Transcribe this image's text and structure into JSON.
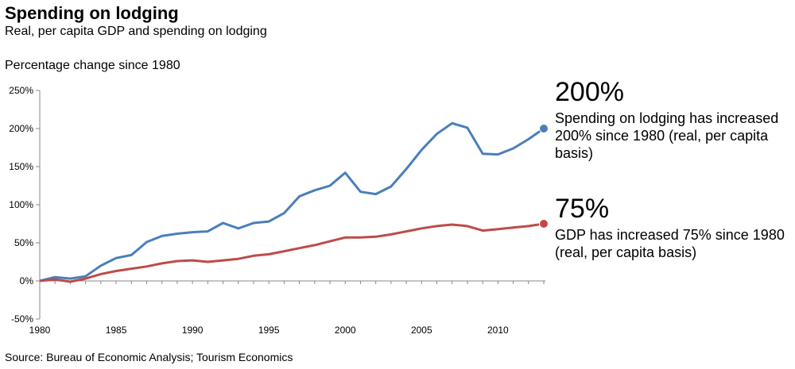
{
  "chart_data": {
    "type": "line",
    "title": "Spending on lodging",
    "subtitle": "Real, per capita GDP and spending on lodging",
    "ylabel": "Percentage change since 1980",
    "source": "Source: Bureau of Economic Analysis; Tourism Economics",
    "ylim": [
      -50,
      250
    ],
    "yticks": [
      -50,
      0,
      50,
      100,
      150,
      200,
      250
    ],
    "ytick_labels": [
      "-50%",
      "0%",
      "50%",
      "100%",
      "150%",
      "200%",
      "250%"
    ],
    "xlim": [
      1980,
      2013
    ],
    "xticks": [
      1980,
      1985,
      1990,
      1995,
      2000,
      2005,
      2010
    ],
    "xtick_labels": [
      "1980",
      "1985",
      "1990",
      "1995",
      "2000",
      "2005",
      "2010"
    ],
    "x": [
      1980,
      1981,
      1982,
      1983,
      1984,
      1985,
      1986,
      1987,
      1988,
      1989,
      1990,
      1991,
      1992,
      1993,
      1994,
      1995,
      1996,
      1997,
      1998,
      1999,
      2000,
      2001,
      2002,
      2003,
      2004,
      2005,
      2006,
      2007,
      2008,
      2009,
      2010,
      2011,
      2012,
      2013
    ],
    "series": [
      {
        "key": "lodging",
        "color": "#4a7ebb",
        "values": [
          0,
          5,
          3,
          6,
          20,
          30,
          34,
          51,
          59,
          62,
          64,
          65,
          76,
          69,
          76,
          78,
          89,
          111,
          119,
          125,
          142,
          117,
          114,
          124,
          147,
          172,
          193,
          207,
          201,
          167,
          166,
          174,
          186,
          200
        ]
      },
      {
        "key": "gdp",
        "color": "#be4b48",
        "values": [
          0,
          2,
          -1,
          3,
          9,
          13,
          16,
          19,
          23,
          26,
          27,
          25,
          27,
          29,
          33,
          35,
          39,
          43,
          47,
          52,
          57,
          57,
          58,
          61,
          65,
          69,
          72,
          74,
          72,
          66,
          68,
          70,
          72,
          75
        ]
      }
    ],
    "annotations": {
      "lodging_big": "200%",
      "lodging_text": "Spending on lodging has increased 200% since 1980 (real, per capita basis)",
      "gdp_big": "75%",
      "gdp_text": "GDP has increased 75% since 1980 (real, per capita basis)"
    }
  }
}
